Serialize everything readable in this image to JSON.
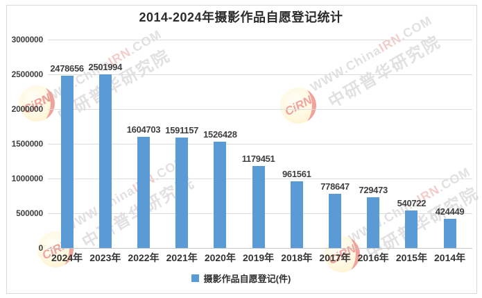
{
  "chart_data": {
    "type": "bar",
    "title": "2014-2024年摄影作品自愿登记统计",
    "categories": [
      "2024年",
      "2023年",
      "2022年",
      "2021年",
      "2020年",
      "2019年",
      "2018年",
      "2017年",
      "2016年",
      "2015年",
      "2014年"
    ],
    "values": [
      2478656,
      2501994,
      1604703,
      1591157,
      1526428,
      1179451,
      961561,
      778647,
      729473,
      540722,
      424449
    ],
    "series_name": "摄影作品自愿登记(件)",
    "legend_label": "摄影作品自愿登记(件)",
    "legend_position": "bottom",
    "xlabel": "",
    "ylabel": "",
    "ylim": [
      0,
      3000000
    ],
    "ytick_step": 500000,
    "yticks": [
      "3000000",
      "2500000",
      "2000000",
      "1500000",
      "1000000",
      "500000",
      "0"
    ],
    "grid": true,
    "show_value_labels": true,
    "bar_color": "#5B9BD5"
  },
  "watermark": {
    "site_prefix": "WWW.China",
    "site_highlight": "IRN",
    "site_suffix": ".COM",
    "org_name": "中研普华研究院",
    "stamp_text": "CiRN"
  },
  "colors": {
    "bar": "#5B9BD5",
    "gridline": "#dcdcdc",
    "axis_line": "#c4c4c4",
    "value_text": "#3f3f3f",
    "title_text": "#2b2b2b",
    "frame_border": "#d9d9d9",
    "watermark_gray": "#cbc7c7",
    "watermark_red": "#eaa3a0",
    "stamp_red": "#e2493c",
    "stamp_yellow": "#ffe9a8"
  }
}
